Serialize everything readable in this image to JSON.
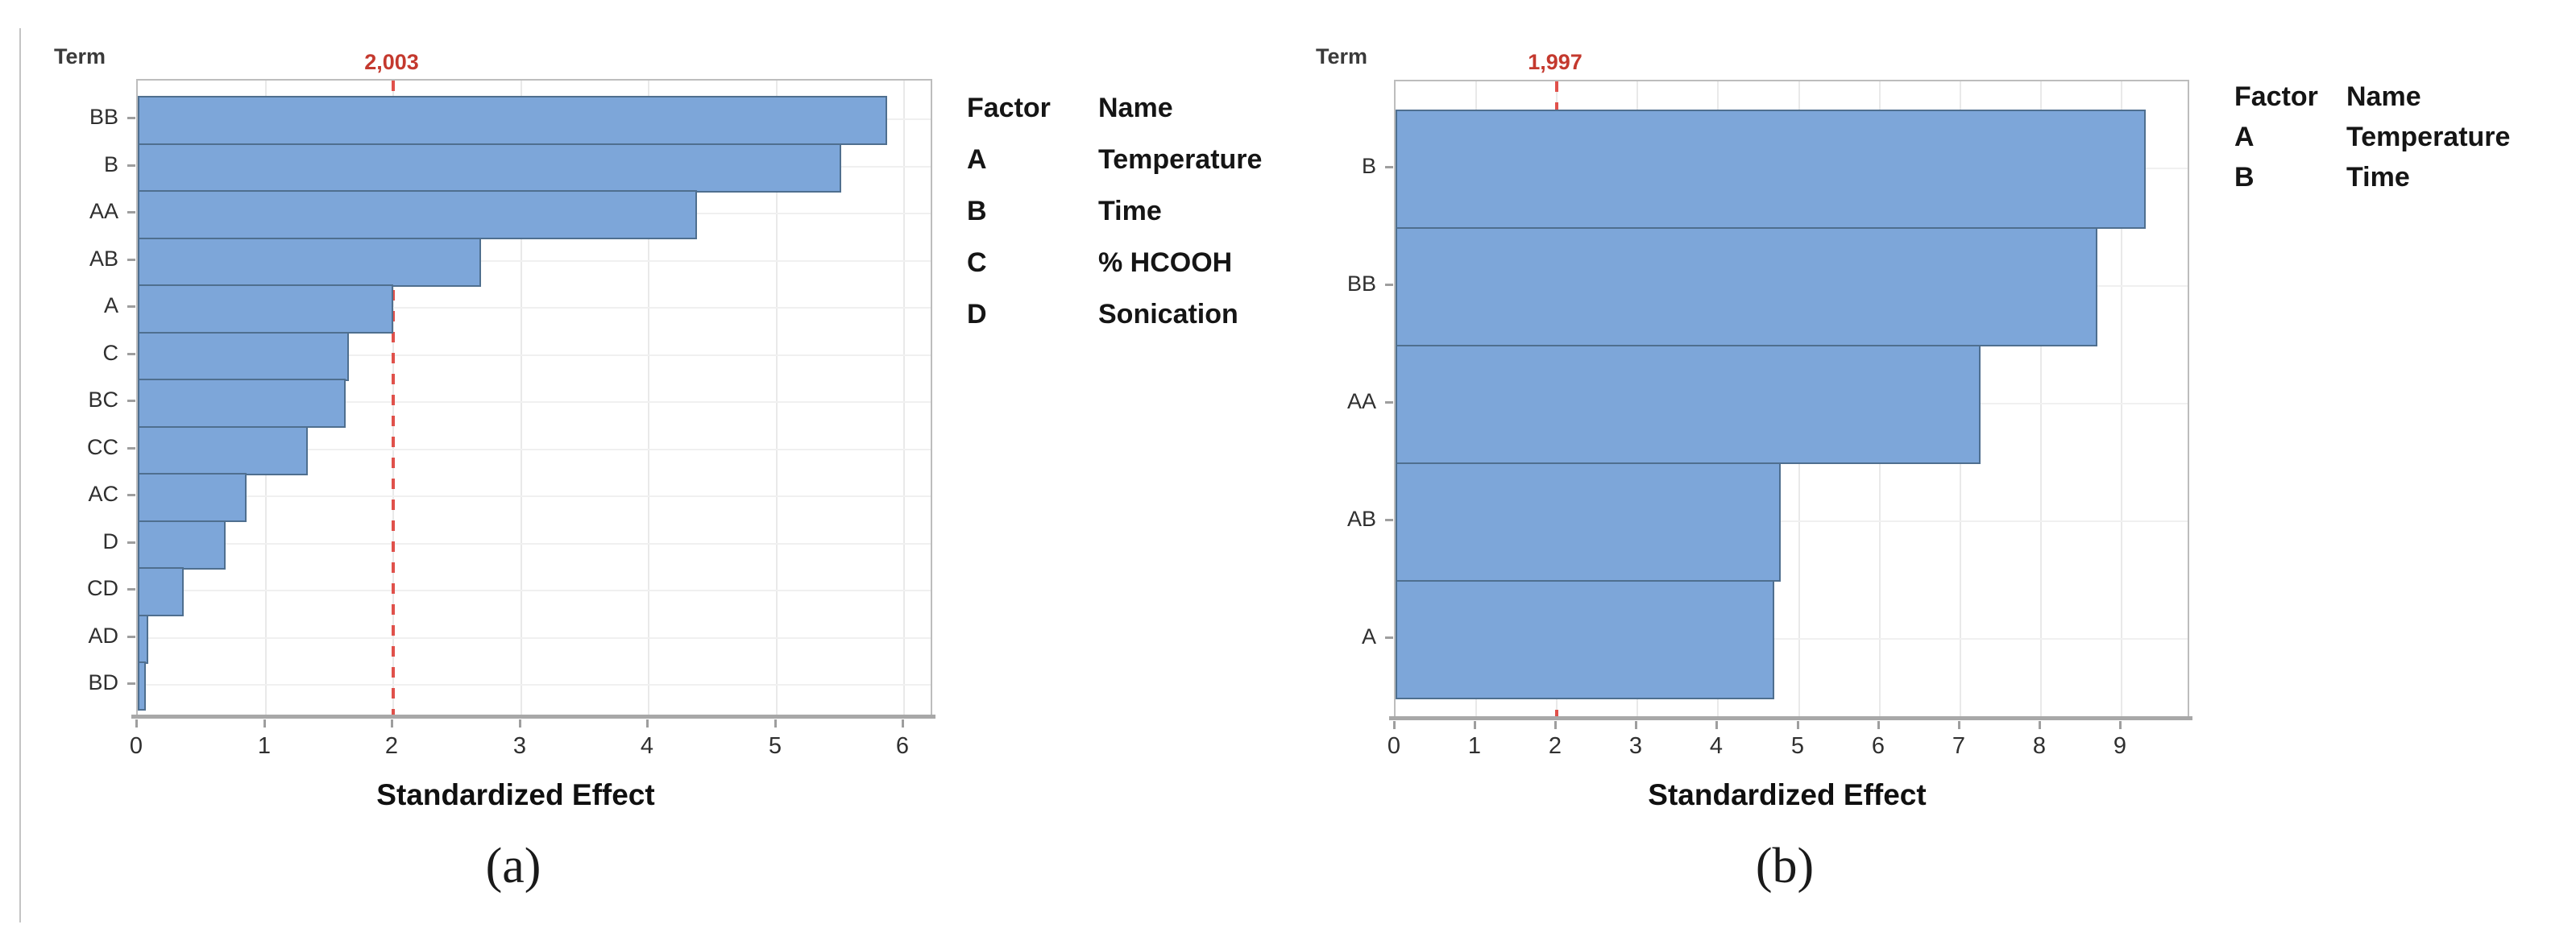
{
  "figure": {
    "background": "#ffffff",
    "captions": [
      "(a)",
      "(b)"
    ]
  },
  "style": {
    "bar_fill": "#7da6d9",
    "bar_border": "#4f6f8f",
    "reference_line_color": "#e0514b",
    "reference_text_color": "#c4392e",
    "frame_color": "#bdbdbd",
    "axis_color": "#a8a8a8",
    "grid_color": "#e9e9e9",
    "text_color": "#2f2f2f"
  },
  "chart_data": [
    {
      "type": "bar",
      "orientation": "horizontal",
      "panel": "a",
      "caption": "(a)",
      "title": "",
      "ylabel": "Term",
      "xlabel": "Standardized Effect",
      "categories": [
        "BB",
        "B",
        "AA",
        "AB",
        "A",
        "C",
        "BC",
        "CC",
        "AC",
        "D",
        "CD",
        "AD",
        "BD"
      ],
      "values": [
        5.87,
        5.51,
        4.38,
        2.69,
        2.0,
        1.65,
        1.63,
        1.33,
        0.85,
        0.69,
        0.36,
        0.08,
        0.06
      ],
      "xlim": [
        0,
        6.23
      ],
      "xticks": [
        0,
        1,
        2,
        3,
        4,
        5,
        6
      ],
      "grid": "vertical-and-category",
      "reference_line": {
        "value": 2.003,
        "label": "2,003"
      },
      "legend": {
        "position": "right-of-plot",
        "header": {
          "factor": "Factor",
          "name": "Name"
        },
        "rows": [
          {
            "factor": "A",
            "name": "Temperature"
          },
          {
            "factor": "B",
            "name": "Time"
          },
          {
            "factor": "C",
            "name": "% HCOOH"
          },
          {
            "factor": "D",
            "name": "Sonication"
          }
        ]
      }
    },
    {
      "type": "bar",
      "orientation": "horizontal",
      "panel": "b",
      "caption": "(b)",
      "title": "",
      "ylabel": "Term",
      "xlabel": "Standardized Effect",
      "categories": [
        "B",
        "BB",
        "AA",
        "AB",
        "A"
      ],
      "values": [
        9.3,
        8.7,
        7.25,
        4.78,
        4.7
      ],
      "xlim": [
        0,
        9.83
      ],
      "xticks": [
        0,
        1,
        2,
        3,
        4,
        5,
        6,
        7,
        8,
        9
      ],
      "grid": "vertical-and-category",
      "reference_line": {
        "value": 1.997,
        "label": "1,997"
      },
      "legend": {
        "position": "right-of-plot",
        "header": {
          "factor": "Factor",
          "name": "Name"
        },
        "rows": [
          {
            "factor": "A",
            "name": "Temperature"
          },
          {
            "factor": "B",
            "name": "Time"
          }
        ]
      }
    }
  ]
}
